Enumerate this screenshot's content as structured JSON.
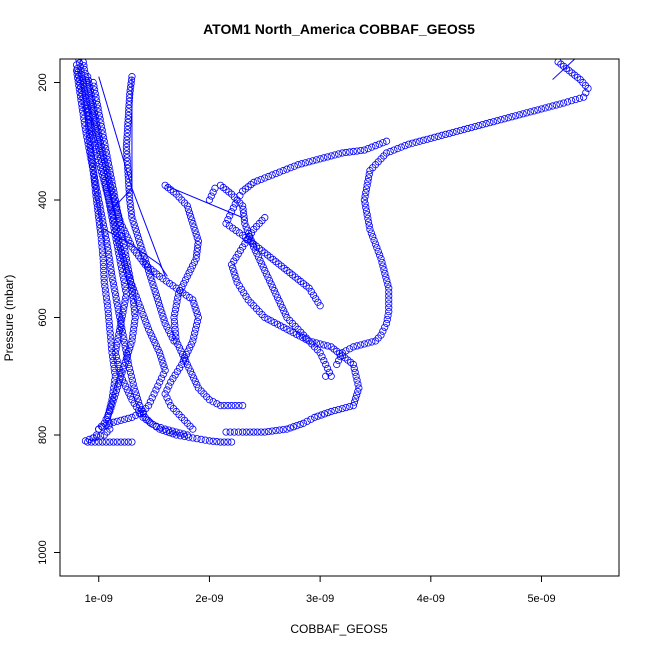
{
  "chart_data": {
    "type": "scatter",
    "title": "ATOM1 North_America COBBAF_GEOS5",
    "xlabel": "COBBAF_GEOS5",
    "ylabel": "Pressure (mbar)",
    "xlim": [
      6.5e-10,
      5.7e-09
    ],
    "ylim": [
      1040,
      160
    ],
    "y_reversed": true,
    "x_ticks": [
      1e-09,
      2e-09,
      3e-09,
      4e-09,
      5e-09
    ],
    "x_tick_labels": [
      "1e-09",
      "2e-09",
      "3e-09",
      "4e-09",
      "5e-09"
    ],
    "y_ticks": [
      200,
      400,
      600,
      800,
      1000
    ],
    "y_tick_labels": [
      "200",
      "400",
      "600",
      "800",
      "1000"
    ],
    "marker": "open-circle",
    "series_color": "#0000ff",
    "grid": false,
    "legend": "none",
    "series": [
      {
        "x": [
          8.2e-10,
          8.6e-10,
          9e-10,
          9.2e-10,
          9.5e-10,
          9.8e-10,
          1e-09,
          1.02e-09,
          1.04e-09,
          1.05e-09,
          1.08e-09,
          1.1e-09,
          1.12e-09,
          1.15e-09,
          1.12e-09,
          1.08e-09,
          1.1e-09,
          1.05e-09,
          9.5e-10,
          8.8e-10,
          9e-10,
          1e-09,
          1.1e-09,
          1.2e-09,
          1.3e-09
        ],
        "y": [
          160,
          200,
          250,
          300,
          350,
          400,
          430,
          460,
          500,
          540,
          580,
          620,
          660,
          700,
          740,
          770,
          790,
          800,
          805,
          810,
          812,
          812,
          812,
          812,
          812
        ]
      },
      {
        "x": [
          8.6e-10,
          9e-10,
          9.5e-10,
          1e-09,
          1.05e-09,
          1.1e-09,
          1.15e-09,
          1.2e-09,
          1.25e-09,
          1.2e-09,
          1.15e-09,
          1.2e-09,
          1.3e-09,
          1.4e-09,
          1.55e-09,
          1.7e-09,
          1.85e-09,
          2e-09,
          2.1e-09,
          2.2e-09
        ],
        "y": [
          165,
          210,
          260,
          310,
          360,
          410,
          460,
          510,
          560,
          610,
          660,
          700,
          740,
          770,
          790,
          800,
          805,
          810,
          812,
          812
        ]
      },
      {
        "x": [
          8e-10,
          8.4e-10,
          8.8e-10,
          9.3e-10,
          9.8e-10,
          1.03e-09,
          1.08e-09,
          1.12e-09,
          1.17e-09,
          1.22e-09,
          1.27e-09,
          1.32e-09,
          1.37e-09,
          1.42e-09,
          1.47e-09,
          1.52e-09,
          1.6e-09,
          1.7e-09,
          1.8e-09
        ],
        "y": [
          180,
          230,
          280,
          330,
          380,
          430,
          480,
          530,
          580,
          630,
          680,
          720,
          750,
          770,
          780,
          785,
          790,
          795,
          800
        ]
      },
      {
        "x": [
          8e-10,
          8.5e-10,
          9.2e-10,
          9.8e-10,
          1.05e-09,
          1.12e-09,
          1.18e-09,
          1.25e-09,
          1.35e-09,
          1.45e-09,
          1.55e-09,
          1.6e-09,
          1.55e-09,
          1.5e-09,
          1.45e-09,
          1.4e-09,
          1.3e-09,
          1.2e-09,
          1.1e-09,
          1e-09
        ],
        "y": [
          170,
          220,
          270,
          320,
          370,
          420,
          470,
          520,
          570,
          620,
          660,
          690,
          710,
          730,
          750,
          760,
          770,
          775,
          780,
          790
        ]
      },
      {
        "x": [
          9e-10,
          9.5e-10,
          1e-09,
          1.06e-09,
          1.12e-09,
          1.2e-09,
          1.3e-09,
          1.42e-09,
          1.55e-09,
          1.7e-09,
          1.85e-09,
          1.9e-09,
          1.85e-09,
          1.75e-09,
          1.65e-09,
          1.6e-09,
          1.65e-09,
          1.75e-09,
          1.85e-09
        ],
        "y": [
          190,
          240,
          290,
          340,
          390,
          440,
          480,
          510,
          530,
          550,
          570,
          600,
          640,
          680,
          710,
          730,
          750,
          770,
          790
        ]
      },
      {
        "x": [
          9.5e-10,
          1e-09,
          1.05e-09,
          1.1e-09,
          1.15e-09,
          1.2e-09,
          1.25e-09,
          1.3e-09,
          1.33e-09,
          1.3e-09,
          1.25e-09,
          1.2e-09,
          1.15e-09,
          1.1e-09,
          1.05e-09,
          1e-09,
          9.8e-10,
          9.5e-10
        ],
        "y": [
          200,
          250,
          300,
          350,
          400,
          450,
          500,
          550,
          600,
          640,
          670,
          700,
          730,
          760,
          780,
          790,
          800,
          805
        ]
      },
      {
        "x": [
          1.3e-09,
          1.28e-09,
          1.27e-09,
          1.26e-09,
          1.25e-09,
          1.26e-09,
          1.27e-09,
          1.28e-09,
          1.3e-09,
          1.35e-09,
          1.4e-09,
          1.45e-09,
          1.5e-09,
          1.55e-09,
          1.6e-09,
          1.68e-09
        ],
        "y": [
          190,
          220,
          250,
          280,
          310,
          340,
          370,
          400,
          430,
          460,
          490,
          520,
          550,
          580,
          610,
          640
        ]
      },
      {
        "x": [
          1.6e-09,
          1.7e-09,
          1.8e-09,
          1.85e-09,
          1.9e-09,
          1.88e-09,
          1.8e-09,
          1.72e-09,
          1.68e-09,
          1.7e-09,
          1.8e-09,
          1.9e-09,
          2e-09,
          2.1e-09,
          2.2e-09,
          2.3e-09
        ],
        "y": [
          375,
          390,
          410,
          440,
          470,
          500,
          530,
          560,
          600,
          640,
          680,
          720,
          740,
          750,
          750,
          750
        ]
      },
      {
        "x": [
          2e-09,
          2.05e-09,
          2.1e-09,
          2.2e-09,
          2.3e-09,
          2.32e-09,
          2.4e-09,
          2.5e-09,
          2.6e-09,
          2.7e-09,
          2.8e-09,
          2.9e-09,
          3e-09,
          3.05e-09,
          3.1e-09,
          3.05e-09
        ],
        "y": [
          400,
          380,
          375,
          390,
          410,
          440,
          480,
          520,
          560,
          600,
          620,
          640,
          660,
          680,
          700,
          700
        ]
      },
      {
        "x": [
          2.5e-09,
          2.4e-09,
          2.3e-09,
          2.2e-09,
          2.25e-09,
          2.35e-09,
          2.5e-09,
          2.7e-09,
          2.9e-09,
          3.1e-09,
          3.3e-09,
          3.35e-09,
          3.3e-09,
          3.1e-09,
          2.95e-09,
          2.85e-09,
          2.7e-09,
          2.5e-09,
          2.3e-09,
          2.15e-09
        ],
        "y": [
          430,
          450,
          480,
          510,
          540,
          570,
          600,
          620,
          640,
          650,
          680,
          720,
          750,
          760,
          770,
          780,
          790,
          795,
          795,
          795
        ]
      },
      {
        "x": [
          5.15e-09,
          5.25e-09,
          5.35e-09,
          5.42e-09,
          5.38e-09,
          5.2e-09,
          5e-09,
          4.8e-09,
          4.6e-09,
          4.4e-09,
          4.2e-09,
          4e-09,
          3.8e-09,
          3.6e-09,
          3.45e-09,
          3.4e-09,
          3.45e-09,
          3.55e-09,
          3.62e-09,
          3.62e-09,
          3.6e-09,
          3.55e-09,
          3.5e-09,
          3.3e-09,
          3.2e-09,
          3.15e-09
        ],
        "y": [
          165,
          180,
          195,
          210,
          225,
          235,
          245,
          255,
          265,
          275,
          285,
          295,
          305,
          320,
          350,
          400,
          450,
          500,
          550,
          590,
          610,
          630,
          640,
          650,
          660,
          680
        ]
      },
      {
        "x": [
          3.6e-09,
          3.4e-09,
          3.2e-09,
          3e-09,
          2.8e-09,
          2.6e-09,
          2.4e-09,
          2.3e-09,
          2.25e-09,
          2.2e-09,
          2.15e-09,
          2.3e-09,
          2.5e-09,
          2.7e-09,
          2.9e-09,
          3e-09
        ],
        "y": [
          300,
          315,
          320,
          330,
          340,
          355,
          370,
          385,
          400,
          420,
          440,
          460,
          490,
          520,
          550,
          580
        ]
      }
    ],
    "connector_lines": [
      {
        "x": [
          1.3e-09,
          1.3e-09,
          1.1e-09
        ],
        "y": [
          190,
          380,
          420
        ]
      },
      {
        "x": [
          1e-09,
          1.3e-09,
          1.6e-09
        ],
        "y": [
          190,
          380,
          530
        ]
      },
      {
        "x": [
          1.6e-09,
          2.3e-09
        ],
        "y": [
          375,
          430
        ]
      },
      {
        "x": [
          1.05e-09,
          1.25e-09,
          1.4e-09,
          1.55e-09,
          1.62e-09
        ],
        "y": [
          450,
          470,
          490,
          510,
          530
        ]
      },
      {
        "x": [
          5.3e-09,
          5.1e-09
        ],
        "y": [
          160,
          195
        ]
      }
    ]
  }
}
